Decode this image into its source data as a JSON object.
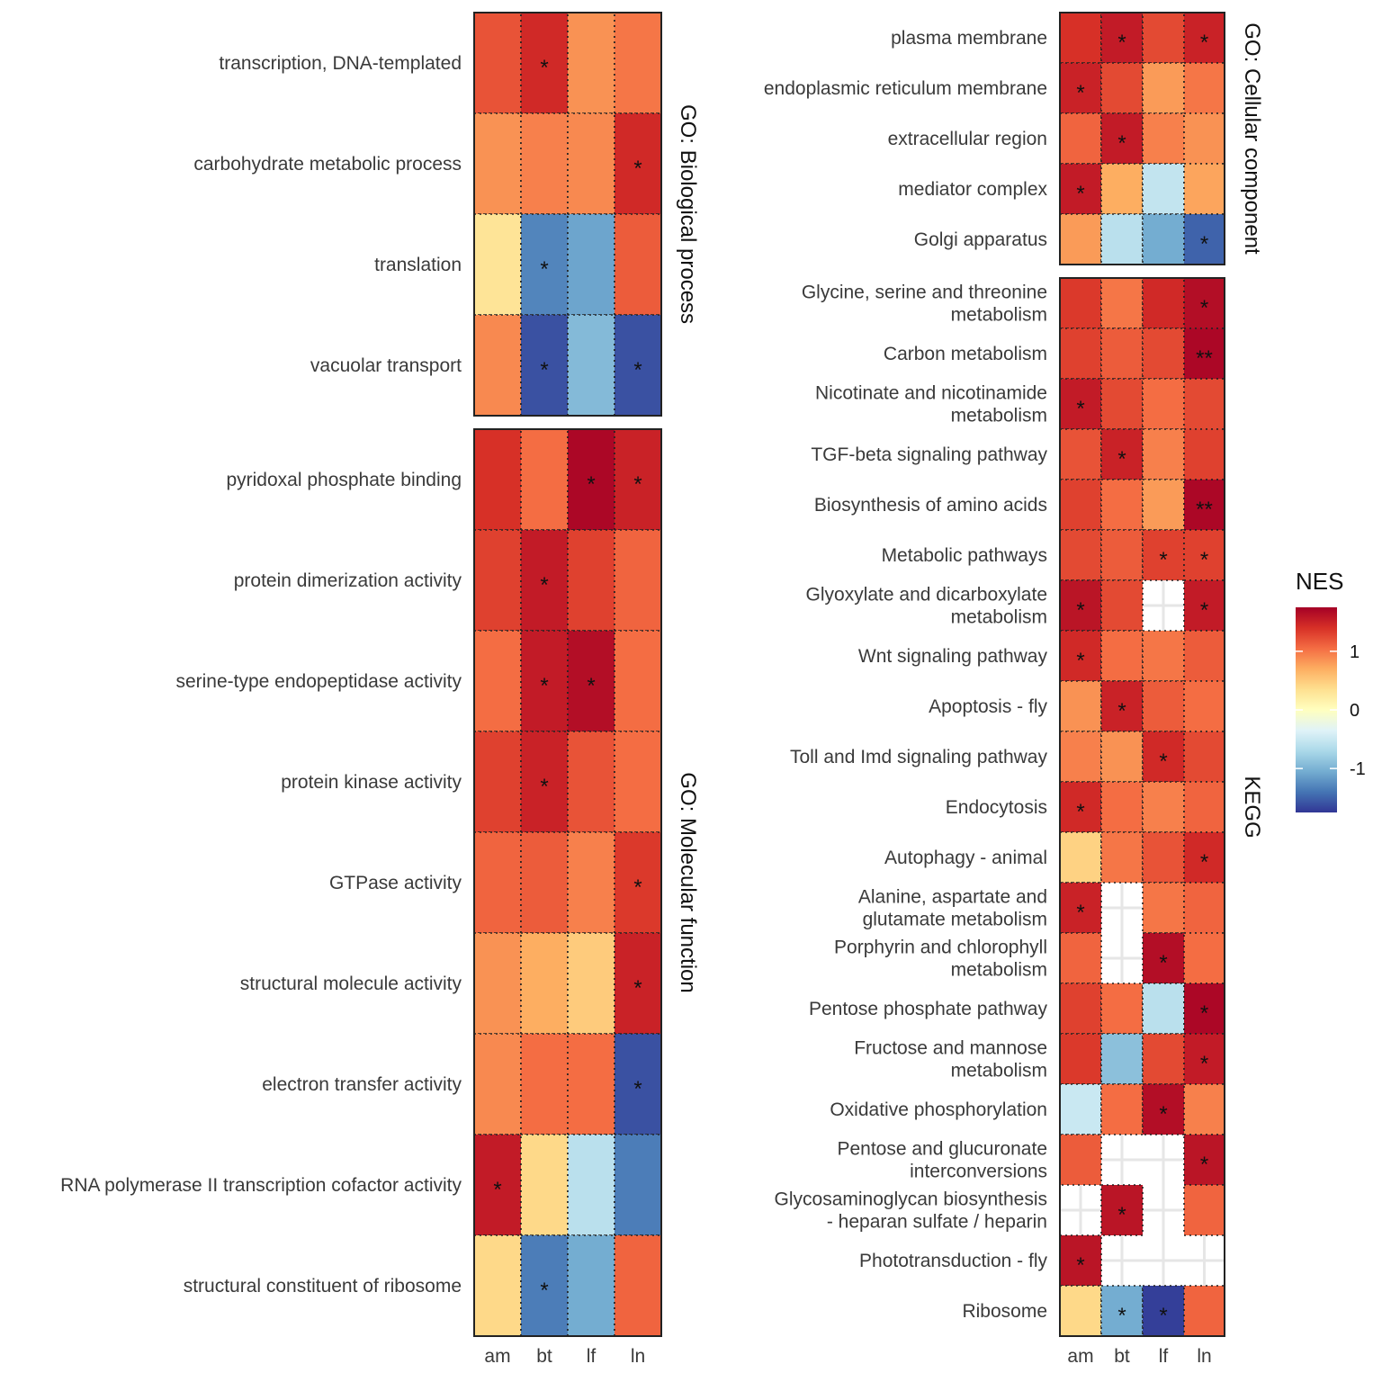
{
  "chart_data": {
    "type": "heatmap",
    "x_categories": [
      "am",
      "bt",
      "lf",
      "ln"
    ],
    "legend": {
      "title": "NES",
      "ticks": [
        1,
        0,
        -1
      ],
      "range": [
        -1.75,
        1.75
      ],
      "colors": [
        "#313695",
        "#4575b4",
        "#74add1",
        "#abd9e9",
        "#e0f3f8",
        "#ffffbf",
        "#fee090",
        "#fdae61",
        "#f46d43",
        "#d73027",
        "#a50026"
      ]
    },
    "panels": [
      {
        "title": "GO: Biological process",
        "rows": [
          {
            "label": [
              "transcription, DNA-templated"
            ],
            "values": [
              1.2,
              1.45,
              0.85,
              1.0
            ],
            "stars": [
              "",
              "*",
              "",
              ""
            ]
          },
          {
            "label": [
              "carbohydrate metabolic process"
            ],
            "values": [
              0.85,
              0.95,
              0.9,
              1.45
            ],
            "stars": [
              "",
              "",
              "",
              "*"
            ]
          },
          {
            "label": [
              "translation"
            ],
            "values": [
              0.3,
              -1.3,
              -1.1,
              1.15
            ],
            "stars": [
              "",
              "*",
              "",
              ""
            ]
          },
          {
            "label": [
              "vacuolar transport"
            ],
            "values": [
              0.9,
              -1.6,
              -0.95,
              -1.6
            ],
            "stars": [
              "",
              "*",
              "",
              "*"
            ]
          }
        ]
      },
      {
        "title": "GO: Molecular function",
        "rows": [
          {
            "label": [
              "pyridoxal phosphate binding"
            ],
            "values": [
              1.4,
              1.05,
              1.7,
              1.5
            ],
            "stars": [
              "",
              "",
              "*",
              "*"
            ]
          },
          {
            "label": [
              "protein dimerization activity"
            ],
            "values": [
              1.3,
              1.55,
              1.3,
              1.1
            ],
            "stars": [
              "",
              "*",
              "",
              ""
            ]
          },
          {
            "label": [
              "serine-type endopeptidase activity"
            ],
            "values": [
              1.05,
              1.55,
              1.65,
              1.05
            ],
            "stars": [
              "",
              "*",
              "*",
              ""
            ]
          },
          {
            "label": [
              "protein kinase activity"
            ],
            "values": [
              1.3,
              1.5,
              1.2,
              1.05
            ],
            "stars": [
              "",
              "*",
              "",
              ""
            ]
          },
          {
            "label": [
              "GTPase activity"
            ],
            "values": [
              1.1,
              1.15,
              0.95,
              1.35
            ],
            "stars": [
              "",
              "",
              "",
              "*"
            ]
          },
          {
            "label": [
              "structural molecule activity"
            ],
            "values": [
              0.85,
              0.7,
              0.5,
              1.5
            ],
            "stars": [
              "",
              "",
              "",
              "*"
            ]
          },
          {
            "label": [
              "electron transfer activity"
            ],
            "values": [
              0.9,
              1.05,
              1.05,
              -1.6
            ],
            "stars": [
              "",
              "",
              "",
              "*"
            ]
          },
          {
            "label": [
              "RNA polymerase II transcription cofactor activity"
            ],
            "values": [
              1.55,
              0.4,
              -0.6,
              -1.35
            ],
            "stars": [
              "*",
              "",
              "",
              ""
            ]
          },
          {
            "label": [
              "structural constituent of ribosome"
            ],
            "values": [
              0.4,
              -1.35,
              -1.05,
              1.1
            ],
            "stars": [
              "",
              "*",
              "",
              ""
            ]
          }
        ]
      },
      {
        "title": "GO: Cellular component",
        "rows": [
          {
            "label": [
              "plasma membrane"
            ],
            "values": [
              1.4,
              1.55,
              1.25,
              1.5
            ],
            "stars": [
              "",
              "*",
              "",
              "*"
            ]
          },
          {
            "label": [
              "endoplasmic reticulum membrane"
            ],
            "values": [
              1.5,
              1.25,
              0.8,
              1.0
            ],
            "stars": [
              "*",
              "",
              "",
              ""
            ]
          },
          {
            "label": [
              "extracellular region"
            ],
            "values": [
              1.1,
              1.55,
              0.95,
              0.85
            ],
            "stars": [
              "",
              "*",
              "",
              ""
            ]
          },
          {
            "label": [
              "mediator complex"
            ],
            "values": [
              1.55,
              0.7,
              -0.55,
              0.75
            ],
            "stars": [
              "*",
              "",
              "",
              ""
            ]
          },
          {
            "label": [
              "Golgi apparatus"
            ],
            "values": [
              0.8,
              -0.6,
              -1.05,
              -1.5
            ],
            "stars": [
              "",
              "",
              "",
              "*"
            ]
          }
        ]
      },
      {
        "title": "KEGG",
        "rows": [
          {
            "label": [
              "Glycine, serine and threonine",
              "metabolism"
            ],
            "values": [
              1.35,
              1.0,
              1.45,
              1.65
            ],
            "stars": [
              "",
              "",
              "",
              "*"
            ]
          },
          {
            "label": [
              "Carbon metabolism"
            ],
            "values": [
              1.3,
              1.15,
              1.25,
              1.7
            ],
            "stars": [
              "",
              "",
              "",
              "**"
            ]
          },
          {
            "label": [
              "Nicotinate and nicotinamide",
              "metabolism"
            ],
            "values": [
              1.55,
              1.25,
              1.05,
              1.25
            ],
            "stars": [
              "*",
              "",
              "",
              ""
            ]
          },
          {
            "label": [
              "TGF-beta signaling pathway"
            ],
            "values": [
              1.2,
              1.5,
              0.95,
              1.3
            ],
            "stars": [
              "",
              "*",
              "",
              ""
            ]
          },
          {
            "label": [
              "Biosynthesis of amino acids"
            ],
            "values": [
              1.3,
              1.05,
              0.8,
              1.7
            ],
            "stars": [
              "",
              "",
              "",
              "**"
            ]
          },
          {
            "label": [
              "Metabolic pathways"
            ],
            "values": [
              1.25,
              1.15,
              1.3,
              1.3
            ],
            "stars": [
              "",
              "",
              "*",
              "*"
            ]
          },
          {
            "label": [
              "Glyoxylate and dicarboxylate",
              "metabolism"
            ],
            "values": [
              1.6,
              1.25,
              null,
              1.55
            ],
            "stars": [
              "*",
              "",
              "",
              "*"
            ]
          },
          {
            "label": [
              "Wnt signaling pathway"
            ],
            "values": [
              1.45,
              1.05,
              1.0,
              1.15
            ],
            "stars": [
              "*",
              "",
              "",
              ""
            ]
          },
          {
            "label": [
              "Apoptosis - fly"
            ],
            "values": [
              0.85,
              1.5,
              1.15,
              1.05
            ],
            "stars": [
              "",
              "*",
              "",
              ""
            ]
          },
          {
            "label": [
              "Toll and Imd signaling pathway"
            ],
            "values": [
              0.95,
              0.85,
              1.45,
              1.25
            ],
            "stars": [
              "",
              "",
              "*",
              ""
            ]
          },
          {
            "label": [
              "Endocytosis"
            ],
            "values": [
              1.45,
              1.05,
              0.95,
              1.1
            ],
            "stars": [
              "*",
              "",
              "",
              ""
            ]
          },
          {
            "label": [
              "Autophagy - animal"
            ],
            "values": [
              0.45,
              1.0,
              1.2,
              1.45
            ],
            "stars": [
              "",
              "",
              "",
              "*"
            ]
          },
          {
            "label": [
              "Alanine, aspartate and",
              "glutamate metabolism"
            ],
            "values": [
              1.5,
              null,
              1.0,
              1.1
            ],
            "stars": [
              "*",
              "",
              "",
              ""
            ]
          },
          {
            "label": [
              "Porphyrin and chlorophyll",
              "metabolism"
            ],
            "values": [
              1.1,
              null,
              1.65,
              1.05
            ],
            "stars": [
              "",
              "",
              "*",
              ""
            ]
          },
          {
            "label": [
              "Pentose phosphate pathway"
            ],
            "values": [
              1.3,
              1.05,
              -0.6,
              1.7
            ],
            "stars": [
              "",
              "",
              "",
              "*"
            ]
          },
          {
            "label": [
              "Fructose and mannose",
              "metabolism"
            ],
            "values": [
              1.35,
              -0.9,
              1.25,
              1.55
            ],
            "stars": [
              "",
              "",
              "",
              "*"
            ]
          },
          {
            "label": [
              "Oxidative phosphorylation"
            ],
            "values": [
              -0.5,
              1.05,
              1.65,
              0.95
            ],
            "stars": [
              "",
              "",
              "*",
              ""
            ]
          },
          {
            "label": [
              "Pentose and glucuronate",
              "interconversions"
            ],
            "values": [
              1.15,
              null,
              null,
              1.6
            ],
            "stars": [
              "",
              "",
              "",
              "*"
            ]
          },
          {
            "label": [
              "Glycosaminoglycan biosynthesis",
              "- heparan sulfate / heparin"
            ],
            "values": [
              null,
              1.6,
              null,
              1.1
            ],
            "stars": [
              "",
              "*",
              "",
              ""
            ]
          },
          {
            "label": [
              "Phototransduction - fly"
            ],
            "values": [
              1.6,
              null,
              null,
              null
            ],
            "stars": [
              "*",
              "",
              "",
              ""
            ]
          },
          {
            "label": [
              "Ribosome"
            ],
            "values": [
              0.4,
              -1.05,
              -1.7,
              1.1
            ],
            "stars": [
              "",
              "*",
              "*",
              ""
            ]
          }
        ]
      }
    ]
  }
}
